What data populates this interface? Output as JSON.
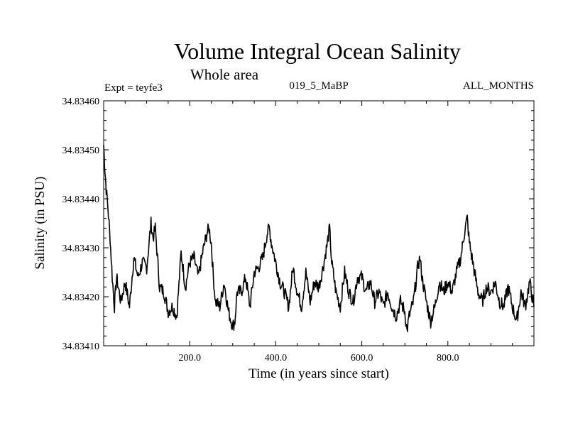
{
  "chart_data": {
    "type": "line",
    "title": "Volume Integral Ocean Salinity",
    "subtitle": "Whole area",
    "experiment": "Expt = teyfe3",
    "run_label": "019_5_MaBP",
    "period": "ALL_MONTHS",
    "xlabel": "Time (in years since start)",
    "ylabel": "Salinity (in PSU)",
    "xlim": [
      0,
      1000
    ],
    "ylim": [
      34.8341,
      34.8346
    ],
    "x_ticks": [
      200,
      400,
      600,
      800
    ],
    "x_tick_labels": [
      "200.0",
      "400.0",
      "600.0",
      "800.0"
    ],
    "y_ticks": [
      34.8341,
      34.8342,
      34.8343,
      34.8344,
      34.8345,
      34.8346
    ],
    "y_tick_labels": [
      "34.83410",
      "34.83420",
      "34.83430",
      "34.83440",
      "34.83450",
      "34.83460"
    ],
    "grid": false,
    "series": [
      {
        "name": "salinity",
        "x": [
          0,
          3,
          6,
          10,
          15,
          20,
          25,
          30,
          40,
          50,
          60,
          70,
          80,
          90,
          100,
          110,
          115,
          120,
          125,
          130,
          140,
          150,
          160,
          170,
          180,
          190,
          200,
          210,
          220,
          230,
          240,
          245,
          250,
          255,
          260,
          270,
          280,
          290,
          300,
          305,
          310,
          320,
          330,
          340,
          350,
          360,
          370,
          380,
          385,
          390,
          400,
          410,
          420,
          430,
          440,
          450,
          460,
          470,
          480,
          490,
          500,
          510,
          520,
          525,
          530,
          540,
          550,
          560,
          570,
          580,
          590,
          600,
          610,
          620,
          630,
          640,
          650,
          660,
          670,
          680,
          690,
          700,
          705,
          710,
          720,
          730,
          735,
          740,
          750,
          760,
          770,
          780,
          790,
          800,
          810,
          820,
          830,
          840,
          845,
          850,
          860,
          870,
          880,
          890,
          900,
          910,
          920,
          930,
          940,
          950,
          960,
          970,
          980,
          990,
          1000
        ],
        "y": [
          34.83451,
          34.83446,
          34.83442,
          34.83438,
          34.83432,
          34.83424,
          34.83418,
          34.83424,
          34.83419,
          34.83423,
          34.83418,
          34.83428,
          34.83424,
          34.83427,
          34.83426,
          34.83435,
          34.83432,
          34.83434,
          34.83428,
          34.83422,
          34.83421,
          34.83417,
          34.83418,
          34.83416,
          34.83429,
          34.83422,
          34.83427,
          34.83428,
          34.83424,
          34.83429,
          34.83433,
          34.83434,
          34.83431,
          34.83424,
          34.83419,
          34.83418,
          34.83423,
          34.83417,
          34.83414,
          34.83415,
          34.83421,
          34.83421,
          34.83424,
          34.83418,
          34.83425,
          34.83426,
          34.83428,
          34.83433,
          34.83434,
          34.83431,
          34.83427,
          34.83423,
          34.83421,
          34.83418,
          34.83426,
          34.83421,
          34.83418,
          34.83425,
          34.83419,
          34.83423,
          34.83422,
          34.83426,
          34.83431,
          34.83434,
          34.83427,
          34.83421,
          34.83418,
          34.83425,
          34.83421,
          34.83419,
          34.83424,
          34.83424,
          34.83421,
          34.83423,
          34.83419,
          34.83421,
          34.83418,
          34.83421,
          34.83418,
          34.83416,
          34.83419,
          34.83417,
          34.83413,
          34.83416,
          34.83419,
          34.83426,
          34.83428,
          34.83424,
          34.83419,
          34.83415,
          34.83418,
          34.83423,
          34.83421,
          34.83423,
          34.83421,
          34.83425,
          34.83428,
          34.83434,
          34.83436,
          34.83431,
          34.83426,
          34.83421,
          34.83419,
          34.83422,
          34.83421,
          34.83423,
          34.83419,
          34.83418,
          34.83422,
          34.83418,
          34.83415,
          34.83421,
          34.83418,
          34.83423,
          34.83418
        ]
      }
    ]
  }
}
